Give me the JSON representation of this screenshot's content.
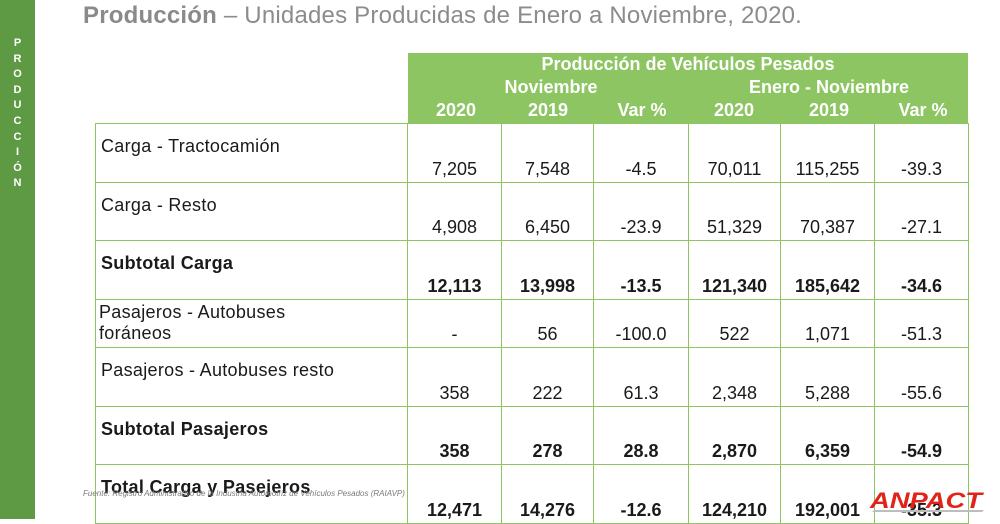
{
  "side_label": "PRODUCCIÓN",
  "title": {
    "bold": "Producción",
    "rest": " – Unidades Producidas de Enero a Noviembre, 2020."
  },
  "header": {
    "main": "Producción de Vehículos Pesados",
    "group_left": "Noviembre",
    "group_right": "Enero - Noviembre",
    "columns": [
      "2020",
      "2019",
      "Var %",
      "2020",
      "2019",
      "Var %"
    ]
  },
  "rows": [
    {
      "label": "Carga - Tractocamión",
      "bold": false,
      "values": [
        "7,205",
        "7,548",
        "-4.5",
        "70,011",
        "115,255",
        "-39.3"
      ]
    },
    {
      "label": "Carga - Resto",
      "bold": false,
      "values": [
        "4,908",
        "6,450",
        "-23.9",
        "51,329",
        "70,387",
        "-27.1"
      ]
    },
    {
      "label": "Subtotal Carga",
      "bold": true,
      "values": [
        "12,113",
        "13,998",
        "-13.5",
        "121,340",
        "185,642",
        "-34.6"
      ]
    },
    {
      "label": "Pasajeros - Autobuses foráneos",
      "label_line1": "Pasajeros - Autobuses",
      "label_line2": "foráneos",
      "bold": false,
      "values": [
        "-",
        "56",
        "-100.0",
        "522",
        "1,071",
        "-51.3"
      ]
    },
    {
      "label": "Pasajeros - Autobuses resto",
      "bold": false,
      "values": [
        "358",
        "222",
        "61.3",
        "2,348",
        "5,288",
        "-55.6"
      ]
    },
    {
      "label": "Subtotal Pasajeros",
      "bold": true,
      "values": [
        "358",
        "278",
        "28.8",
        "2,870",
        "6,359",
        "-54.9"
      ]
    },
    {
      "label": "Total Carga y Pasejeros",
      "bold": true,
      "values": [
        "12,471",
        "14,276",
        "-12.6",
        "124,210",
        "192,001",
        "-35.3"
      ]
    }
  ],
  "footnote": "Fuente: Registro Administrativo de la Industria Automotriz de Vehículos Pesados (RAIAVP)",
  "logo_text": "ANPACT",
  "colors": {
    "sidebar": "#5e9a44",
    "header": "#8cc562",
    "logo_red": "#e2231a"
  }
}
